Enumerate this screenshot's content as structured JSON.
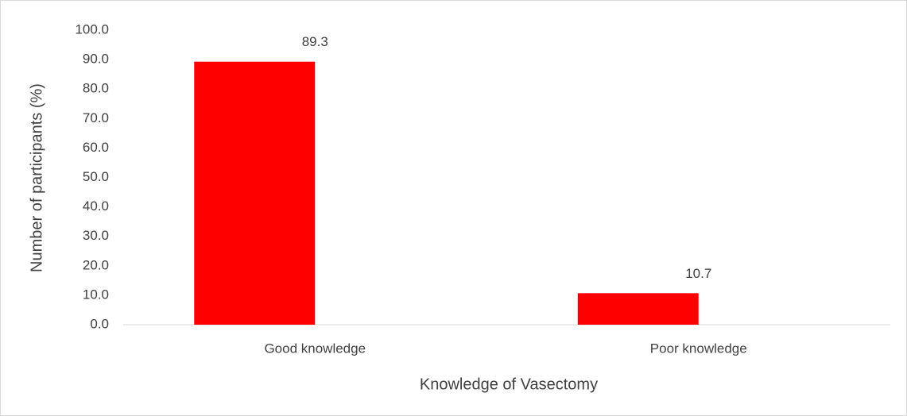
{
  "chart_data": {
    "type": "bar",
    "categories": [
      "Good knowledge",
      "Poor knowledge"
    ],
    "values": [
      89.3,
      10.7
    ],
    "color": "#ff0000",
    "xlabel": "Knowledge of Vasectomy",
    "ylabel": "Number of participants (%)",
    "ylim": [
      0,
      100
    ],
    "yticks": [
      {
        "value": 0,
        "label": "0.0"
      },
      {
        "value": 10,
        "label": "10.0"
      },
      {
        "value": 20,
        "label": "20.0"
      },
      {
        "value": 30,
        "label": "30.0"
      },
      {
        "value": 40,
        "label": "40.0"
      },
      {
        "value": 50,
        "label": "50.0"
      },
      {
        "value": 60,
        "label": "60.0"
      },
      {
        "value": 70,
        "label": "70.0"
      },
      {
        "value": 80,
        "label": "80.0"
      },
      {
        "value": 90,
        "label": "90.0"
      },
      {
        "value": 100,
        "label": "100.0"
      }
    ],
    "grid": false
  }
}
